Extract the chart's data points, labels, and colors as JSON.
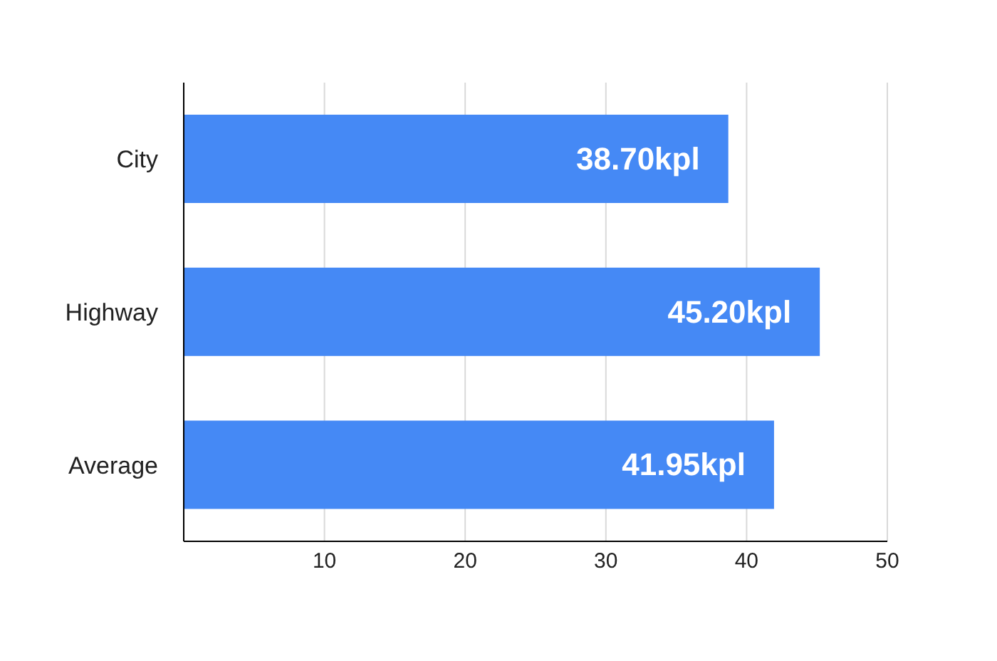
{
  "chart_data": {
    "type": "bar",
    "orientation": "horizontal",
    "categories": [
      "City",
      "Highway",
      "Average"
    ],
    "values": [
      38.7,
      45.2,
      41.95
    ],
    "value_labels": [
      "38.70kpl",
      "45.20kpl",
      "41.95kpl"
    ],
    "color": "#4589f5",
    "xlim": [
      0,
      50
    ],
    "xticks": [
      10,
      20,
      30,
      40,
      50
    ],
    "grid": "x"
  }
}
